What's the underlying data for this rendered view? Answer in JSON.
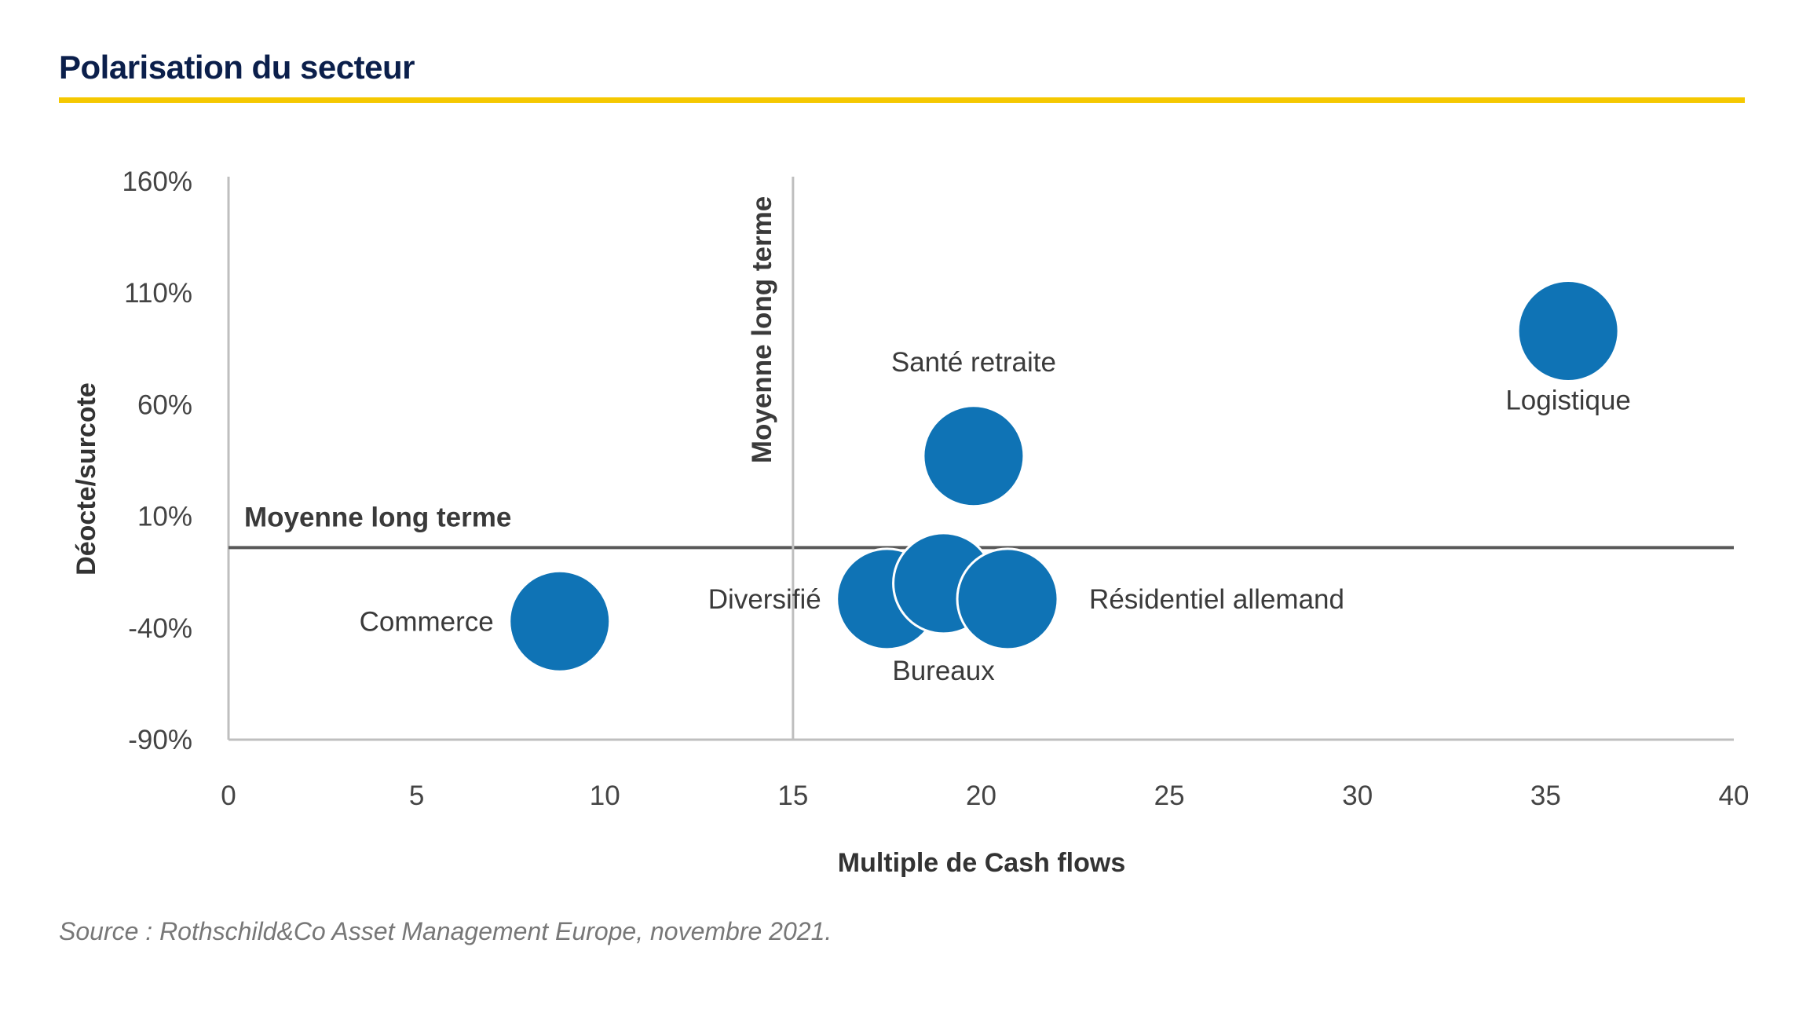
{
  "title": "Polarisation du secteur",
  "source": "Source : Rothschild&Co Asset Management Europe, novembre 2021.",
  "colors": {
    "bubble": "#0f73b5",
    "accent_rule": "#f5c800",
    "title": "#0b1f4b"
  },
  "chart_data": {
    "type": "scatter",
    "title": "Polarisation du secteur",
    "xlabel": "Multiple de Cash flows",
    "ylabel": "Déocte/surcote",
    "xlim": [
      0,
      40
    ],
    "ylim": [
      -90,
      160
    ],
    "x_ticks": [
      0,
      5,
      10,
      15,
      20,
      25,
      30,
      35,
      40
    ],
    "y_ticks": [
      -90,
      -40,
      10,
      60,
      110,
      160
    ],
    "y_tick_labels": [
      "-90%",
      "-40%",
      "10%",
      "60%",
      "110%",
      "160%"
    ],
    "grid": false,
    "points": [
      {
        "label": "Commerce",
        "x": 8.8,
        "y": -37,
        "label_pos": "left"
      },
      {
        "label": "Diversifié",
        "x": 17.5,
        "y": -27,
        "label_pos": "left"
      },
      {
        "label": "Bureaux",
        "x": 19.0,
        "y": -20,
        "label_pos": "below"
      },
      {
        "label": "Résidentiel allemand",
        "x": 20.7,
        "y": -27,
        "label_pos": "right"
      },
      {
        "label": "Santé retraite",
        "x": 19.8,
        "y": 37,
        "label_pos": "above"
      },
      {
        "label": "Logistique",
        "x": 35.6,
        "y": 93,
        "label_pos": "below"
      }
    ],
    "reference_lines": [
      {
        "orientation": "horizontal",
        "value": -4,
        "label": "Moyenne long terme"
      },
      {
        "orientation": "vertical",
        "value": 15,
        "label": "Moyenne long terme"
      }
    ]
  }
}
